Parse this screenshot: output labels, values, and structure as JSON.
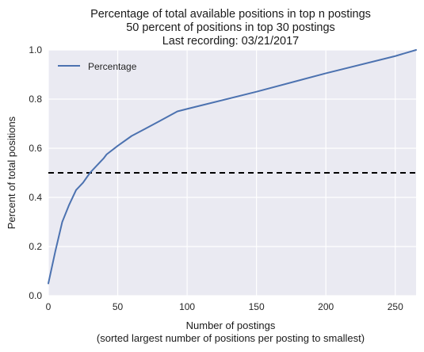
{
  "chart_data": {
    "type": "line",
    "title_lines": [
      "Percentage of total available positions in top n postings",
      "50 percent of positions in top 30 postings",
      "Last recording: 03/21/2017"
    ],
    "xlabel_lines": [
      "Number of postings",
      "(sorted largest number of positions per posting to smallest)"
    ],
    "ylabel": "Percent of total positions",
    "xlim": [
      0,
      265
    ],
    "ylim": [
      0,
      1.0
    ],
    "xticks": [
      0,
      50,
      100,
      150,
      200,
      250
    ],
    "xtick_labels": [
      "0",
      "50",
      "100",
      "150",
      "200",
      "250"
    ],
    "yticks": [
      0.0,
      0.2,
      0.4,
      0.6,
      0.8,
      1.0
    ],
    "ytick_labels": [
      "0.0",
      "0.2",
      "0.4",
      "0.6",
      "0.8",
      "1.0"
    ],
    "grid": true,
    "background": "#eaeaf2",
    "legend_position": "top-left",
    "series": [
      {
        "name": "Percentage",
        "color": "#4c72b0",
        "x": [
          0,
          5,
          10,
          15,
          20,
          25,
          30,
          35,
          40,
          42,
          50,
          60,
          70,
          80,
          93,
          100,
          150,
          200,
          250,
          265
        ],
        "y": [
          0.05,
          0.18,
          0.3,
          0.37,
          0.43,
          0.46,
          0.5,
          0.53,
          0.56,
          0.575,
          0.61,
          0.65,
          0.68,
          0.71,
          0.75,
          0.76,
          0.83,
          0.905,
          0.975,
          1.0
        ]
      }
    ],
    "reference_lines": [
      {
        "type": "horizontal",
        "y": 0.5,
        "style": "dashed",
        "color": "#000000"
      }
    ]
  }
}
